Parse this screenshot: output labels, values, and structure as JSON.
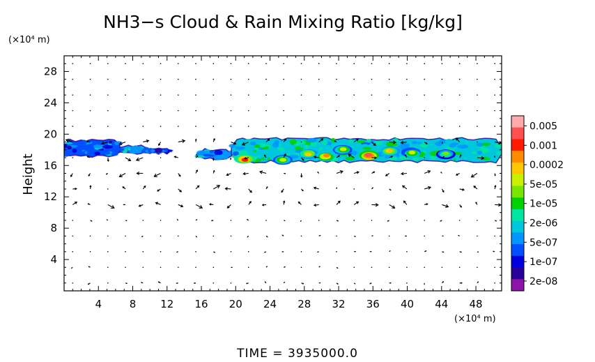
{
  "chart_data": {
    "type": "heatmap",
    "title": "NH3−s Cloud & Rain Mixing Ratio [kg/kg]",
    "ylabel": "Height",
    "y_unit": "(×10⁴ m)",
    "x_unit": "(×10⁴ m)",
    "xlim": [
      0,
      51
    ],
    "ylim": [
      0,
      30
    ],
    "x_ticks": [
      "4",
      "8",
      "12",
      "16",
      "20",
      "24",
      "28",
      "32",
      "36",
      "40",
      "44",
      "48"
    ],
    "y_ticks": [
      "4",
      "8",
      "12",
      "16",
      "20",
      "24",
      "28"
    ],
    "time_label": "TIME  =  3935000.0",
    "colorbar": {
      "labels": [
        "0.005",
        "0.001",
        "0.0002",
        "5e-05",
        "1e-05",
        "2e-06",
        "5e-07",
        "1e-07",
        "2e-08"
      ],
      "colors": [
        "#ffaaaa",
        "#ff5050",
        "#ff1a00",
        "#ff8c00",
        "#ffc800",
        "#c8f000",
        "#78e600",
        "#00d200",
        "#00e6a0",
        "#00c8dc",
        "#0096ff",
        "#0050ff",
        "#0000dc",
        "#28009a",
        "#8c14aa"
      ]
    },
    "cloud_layers": [
      {
        "x_start": 0.0,
        "x_end": 6.5,
        "y_bottom": 17.2,
        "y_top": 19.2,
        "level": 3
      },
      {
        "x_start": 6.5,
        "x_end": 9.5,
        "y_bottom": 17.5,
        "y_top": 18.5,
        "level": 4
      },
      {
        "x_start": 9.5,
        "x_end": 12.5,
        "y_bottom": 17.6,
        "y_top": 18.1,
        "level": 2
      },
      {
        "x_start": 15.8,
        "x_end": 19.5,
        "y_bottom": 16.8,
        "y_top": 18.0,
        "level": 4
      },
      {
        "x_start": 19.5,
        "x_end": 51.0,
        "y_bottom": 16.5,
        "y_top": 19.4,
        "level": 5
      }
    ],
    "convective_cells": [
      {
        "x": 21.0,
        "y": 16.8,
        "level": 12
      },
      {
        "x": 25.5,
        "y": 16.8,
        "level": 9
      },
      {
        "x": 28.5,
        "y": 17.5,
        "level": 10
      },
      {
        "x": 30.5,
        "y": 17.2,
        "level": 11
      },
      {
        "x": 32.5,
        "y": 18.0,
        "level": 9
      },
      {
        "x": 35.5,
        "y": 17.3,
        "level": 13
      },
      {
        "x": 38.0,
        "y": 17.8,
        "level": 10
      },
      {
        "x": 40.5,
        "y": 17.6,
        "level": 9
      },
      {
        "x": 44.5,
        "y": 17.5,
        "level": 8
      }
    ],
    "wind_field": "velocity vectors over domain, strongest near z=12–17"
  }
}
